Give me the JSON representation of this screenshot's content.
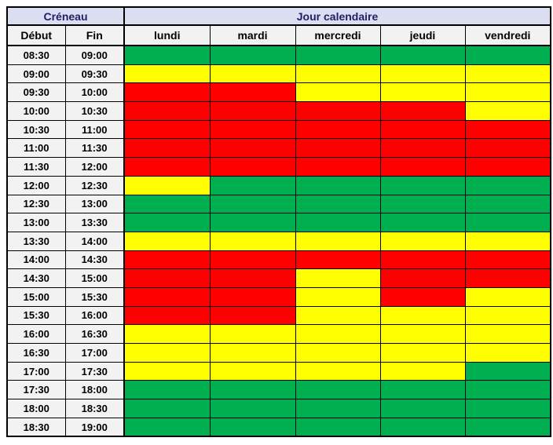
{
  "table": {
    "header_group": {
      "creneau": "Créneau",
      "jour": "Jour calendaire"
    },
    "columns": {
      "debut": "Début",
      "fin": "Fin",
      "days": [
        "lundi",
        "mardi",
        "mercredi",
        "jeudi",
        "vendredi"
      ]
    },
    "colors": {
      "green": "#00B050",
      "yellow": "#FFFF00",
      "red": "#FF0000",
      "header_bg": "#DBDDF0",
      "header_text": "#1F2066",
      "label_bg": "#F2F2F2",
      "grid_line": "#000000"
    },
    "rows": [
      {
        "debut": "08:30",
        "fin": "09:00",
        "days": [
          "green",
          "green",
          "green",
          "green",
          "green"
        ]
      },
      {
        "debut": "09:00",
        "fin": "09:30",
        "days": [
          "yellow",
          "yellow",
          "yellow",
          "yellow",
          "yellow"
        ]
      },
      {
        "debut": "09:30",
        "fin": "10:00",
        "days": [
          "red",
          "red",
          "yellow",
          "yellow",
          "yellow"
        ]
      },
      {
        "debut": "10:00",
        "fin": "10:30",
        "days": [
          "red",
          "red",
          "red",
          "red",
          "yellow"
        ]
      },
      {
        "debut": "10:30",
        "fin": "11:00",
        "days": [
          "red",
          "red",
          "red",
          "red",
          "red"
        ]
      },
      {
        "debut": "11:00",
        "fin": "11:30",
        "days": [
          "red",
          "red",
          "red",
          "red",
          "red"
        ]
      },
      {
        "debut": "11:30",
        "fin": "12:00",
        "days": [
          "red",
          "red",
          "red",
          "red",
          "red"
        ]
      },
      {
        "debut": "12:00",
        "fin": "12:30",
        "days": [
          "yellow",
          "green",
          "green",
          "green",
          "green"
        ]
      },
      {
        "debut": "12:30",
        "fin": "13:00",
        "days": [
          "green",
          "green",
          "green",
          "green",
          "green"
        ]
      },
      {
        "debut": "13:00",
        "fin": "13:30",
        "days": [
          "green",
          "green",
          "green",
          "green",
          "green"
        ]
      },
      {
        "debut": "13:30",
        "fin": "14:00",
        "days": [
          "yellow",
          "yellow",
          "yellow",
          "yellow",
          "yellow"
        ]
      },
      {
        "debut": "14:00",
        "fin": "14:30",
        "days": [
          "red",
          "red",
          "red",
          "red",
          "red"
        ]
      },
      {
        "debut": "14:30",
        "fin": "15:00",
        "days": [
          "red",
          "red",
          "yellow",
          "red",
          "red"
        ]
      },
      {
        "debut": "15:00",
        "fin": "15:30",
        "days": [
          "red",
          "red",
          "yellow",
          "red",
          "yellow"
        ]
      },
      {
        "debut": "15:30",
        "fin": "16:00",
        "days": [
          "red",
          "red",
          "yellow",
          "yellow",
          "yellow"
        ]
      },
      {
        "debut": "16:00",
        "fin": "16:30",
        "days": [
          "yellow",
          "yellow",
          "yellow",
          "yellow",
          "yellow"
        ]
      },
      {
        "debut": "16:30",
        "fin": "17:00",
        "days": [
          "yellow",
          "yellow",
          "yellow",
          "yellow",
          "yellow"
        ]
      },
      {
        "debut": "17:00",
        "fin": "17:30",
        "days": [
          "yellow",
          "yellow",
          "yellow",
          "yellow",
          "green"
        ]
      },
      {
        "debut": "17:30",
        "fin": "18:00",
        "days": [
          "green",
          "green",
          "green",
          "green",
          "green"
        ]
      },
      {
        "debut": "18:00",
        "fin": "18:30",
        "days": [
          "green",
          "green",
          "green",
          "green",
          "green"
        ]
      },
      {
        "debut": "18:30",
        "fin": "19:00",
        "days": [
          "green",
          "green",
          "green",
          "green",
          "green"
        ]
      }
    ]
  }
}
